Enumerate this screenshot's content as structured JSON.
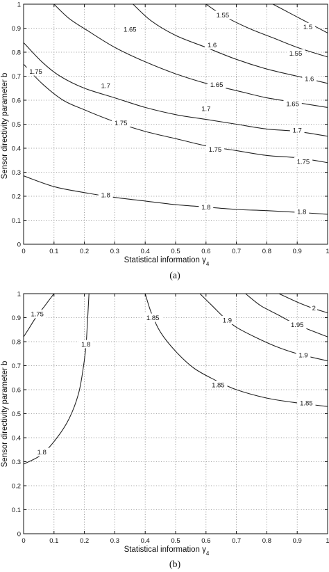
{
  "chart_data": [
    {
      "type": "line",
      "subtype": "contour",
      "caption": "(a)",
      "xlabel": "Statistical information γ4",
      "ylabel": "Sensor directivity parameter b",
      "xlim": [
        0,
        1
      ],
      "ylim": [
        0,
        1
      ],
      "x_ticks": [
        "0",
        "0.1",
        "0.2",
        "0.3",
        "0.4",
        "0.5",
        "0.6",
        "0.7",
        "0.8",
        "0.9",
        "1"
      ],
      "y_ticks": [
        "0",
        "0.1",
        "0.2",
        "0.3",
        "0.4",
        "0.5",
        "0.6",
        "0.7",
        "0.8",
        "0.9",
        "1"
      ],
      "grid": true,
      "contours": [
        {
          "level": "1.5",
          "points": [
            [
              0.82,
              1.0
            ],
            [
              0.88,
              0.96
            ],
            [
              0.94,
              0.92
            ],
            [
              1.0,
              0.88
            ]
          ],
          "labels": [
            {
              "text": "1.5",
              "x": 0.935,
              "y": 0.905,
              "angle": 0
            }
          ]
        },
        {
          "level": "1.55",
          "points": [
            [
              0.6,
              1.0
            ],
            [
              0.66,
              0.95
            ],
            [
              0.74,
              0.9
            ],
            [
              0.82,
              0.86
            ],
            [
              0.9,
              0.82
            ],
            [
              1.0,
              0.78
            ]
          ],
          "labels": [
            {
              "text": "1.55",
              "x": 0.655,
              "y": 0.955,
              "angle": 0
            },
            {
              "text": "1.55",
              "x": 0.895,
              "y": 0.795,
              "angle": 0
            }
          ]
        },
        {
          "level": "1.6",
          "points": [
            [
              0.36,
              1.0
            ],
            [
              0.42,
              0.93
            ],
            [
              0.5,
              0.87
            ],
            [
              0.6,
              0.82
            ],
            [
              0.7,
              0.77
            ],
            [
              0.8,
              0.73
            ],
            [
              0.9,
              0.7
            ],
            [
              1.0,
              0.67
            ]
          ],
          "labels": [
            {
              "text": "1.6",
              "x": 0.62,
              "y": 0.83,
              "angle": 0
            },
            {
              "text": "1.6",
              "x": 0.94,
              "y": 0.69,
              "angle": 0
            }
          ]
        },
        {
          "level": "1.65",
          "points": [
            [
              0.1,
              1.0
            ],
            [
              0.15,
              0.94
            ],
            [
              0.21,
              0.89
            ],
            [
              0.3,
              0.82
            ],
            [
              0.4,
              0.76
            ],
            [
              0.5,
              0.71
            ],
            [
              0.6,
              0.67
            ],
            [
              0.7,
              0.64
            ],
            [
              0.8,
              0.61
            ],
            [
              0.9,
              0.59
            ],
            [
              1.0,
              0.57
            ]
          ],
          "labels": [
            {
              "text": "1.65",
              "x": 0.35,
              "y": 0.895,
              "angle": 0
            },
            {
              "text": "1.65",
              "x": 0.635,
              "y": 0.665,
              "angle": 0
            },
            {
              "text": "1.65",
              "x": 0.885,
              "y": 0.585,
              "angle": 0
            }
          ]
        },
        {
          "level": "1.7",
          "points": [
            [
              0.0,
              0.84
            ],
            [
              0.06,
              0.76
            ],
            [
              0.12,
              0.7
            ],
            [
              0.2,
              0.65
            ],
            [
              0.3,
              0.61
            ],
            [
              0.4,
              0.57
            ],
            [
              0.5,
              0.54
            ],
            [
              0.6,
              0.52
            ],
            [
              0.7,
              0.5
            ],
            [
              0.8,
              0.48
            ],
            [
              0.9,
              0.47
            ],
            [
              1.0,
              0.45
            ]
          ],
          "labels": [
            {
              "text": "1.7",
              "x": 0.27,
              "y": 0.66,
              "angle": 0
            },
            {
              "text": "1.7",
              "x": 0.6,
              "y": 0.565,
              "angle": 0
            },
            {
              "text": "1.7",
              "x": 0.9,
              "y": 0.475,
              "angle": 0
            }
          ]
        },
        {
          "level": "1.75",
          "points": [
            [
              0.0,
              0.75
            ],
            [
              0.06,
              0.67
            ],
            [
              0.13,
              0.6
            ],
            [
              0.2,
              0.56
            ],
            [
              0.3,
              0.51
            ],
            [
              0.4,
              0.47
            ],
            [
              0.5,
              0.44
            ],
            [
              0.6,
              0.41
            ],
            [
              0.7,
              0.39
            ],
            [
              0.8,
              0.37
            ],
            [
              0.9,
              0.36
            ],
            [
              1.0,
              0.34
            ]
          ],
          "labels": [
            {
              "text": "1.75",
              "x": 0.04,
              "y": 0.72,
              "angle": 0
            },
            {
              "text": "1.75",
              "x": 0.32,
              "y": 0.505,
              "angle": 0
            },
            {
              "text": "1.75",
              "x": 0.63,
              "y": 0.395,
              "angle": 0
            },
            {
              "text": "1.75",
              "x": 0.92,
              "y": 0.345,
              "angle": 0
            }
          ]
        },
        {
          "level": "1.8",
          "points": [
            [
              0.0,
              0.285
            ],
            [
              0.1,
              0.24
            ],
            [
              0.2,
              0.215
            ],
            [
              0.3,
              0.195
            ],
            [
              0.4,
              0.18
            ],
            [
              0.5,
              0.165
            ],
            [
              0.6,
              0.155
            ],
            [
              0.7,
              0.145
            ],
            [
              0.8,
              0.14
            ],
            [
              0.9,
              0.133
            ],
            [
              1.0,
              0.125
            ]
          ],
          "labels": [
            {
              "text": "1.8",
              "x": 0.27,
              "y": 0.205,
              "angle": 0
            },
            {
              "text": "1.8",
              "x": 0.6,
              "y": 0.155,
              "angle": 0
            },
            {
              "text": "1.8",
              "x": 0.915,
              "y": 0.135,
              "angle": 0
            }
          ]
        }
      ]
    },
    {
      "type": "line",
      "subtype": "contour",
      "caption": "(b)",
      "xlabel": "Statistical information γ4",
      "ylabel": "Sensor directivity parameter b",
      "xlim": [
        0,
        1
      ],
      "ylim": [
        0,
        1
      ],
      "x_ticks": [
        "0",
        "0.1",
        "0.2",
        "0.3",
        "0.4",
        "0.5",
        "0.6",
        "0.7",
        "0.8",
        "0.9",
        "1"
      ],
      "y_ticks": [
        "0",
        "0.1",
        "0.2",
        "0.3",
        "0.4",
        "0.5",
        "0.6",
        "0.7",
        "0.8",
        "0.9",
        "1"
      ],
      "grid": true,
      "contours": [
        {
          "level": "1.75",
          "points": [
            [
              0.0,
              0.82
            ],
            [
              0.02,
              0.86
            ],
            [
              0.04,
              0.9
            ],
            [
              0.07,
              0.95
            ],
            [
              0.1,
              1.0
            ]
          ],
          "labels": [
            {
              "text": "1.75",
              "x": 0.045,
              "y": 0.915,
              "angle": 0
            }
          ]
        },
        {
          "level": "1.8",
          "points": [
            [
              0.0,
              0.29
            ],
            [
              0.06,
              0.33
            ],
            [
              0.11,
              0.4
            ],
            [
              0.15,
              0.48
            ],
            [
              0.18,
              0.58
            ],
            [
              0.195,
              0.68
            ],
            [
              0.205,
              0.78
            ],
            [
              0.21,
              0.88
            ],
            [
              0.215,
              1.0
            ]
          ],
          "labels": [
            {
              "text": "1.8",
              "x": 0.06,
              "y": 0.34,
              "angle": 0
            },
            {
              "text": "1.8",
              "x": 0.205,
              "y": 0.79,
              "angle": 0
            }
          ]
        },
        {
          "level": "1.85",
          "points": [
            [
              0.4,
              1.0
            ],
            [
              0.42,
              0.92
            ],
            [
              0.45,
              0.84
            ],
            [
              0.5,
              0.76
            ],
            [
              0.56,
              0.69
            ],
            [
              0.63,
              0.64
            ],
            [
              0.7,
              0.6
            ],
            [
              0.8,
              0.565
            ],
            [
              0.9,
              0.545
            ],
            [
              1.0,
              0.53
            ]
          ],
          "labels": [
            {
              "text": "1.85",
              "x": 0.425,
              "y": 0.9,
              "angle": 0
            },
            {
              "text": "1.85",
              "x": 0.64,
              "y": 0.62,
              "angle": 0
            },
            {
              "text": "1.85",
              "x": 0.93,
              "y": 0.545,
              "angle": 0
            }
          ]
        },
        {
          "level": "1.9",
          "points": [
            [
              0.58,
              1.0
            ],
            [
              0.62,
              0.95
            ],
            [
              0.66,
              0.9
            ],
            [
              0.7,
              0.86
            ],
            [
              0.76,
              0.82
            ],
            [
              0.83,
              0.78
            ],
            [
              0.9,
              0.75
            ],
            [
              1.0,
              0.72
            ]
          ],
          "labels": [
            {
              "text": "1.9",
              "x": 0.67,
              "y": 0.89,
              "angle": 0
            },
            {
              "text": "1.9",
              "x": 0.92,
              "y": 0.745,
              "angle": 0
            }
          ]
        },
        {
          "level": "1.95",
          "points": [
            [
              0.73,
              1.0
            ],
            [
              0.78,
              0.95
            ],
            [
              0.84,
              0.91
            ],
            [
              0.9,
              0.87
            ],
            [
              1.0,
              0.82
            ]
          ],
          "labels": [
            {
              "text": "1.95",
              "x": 0.9,
              "y": 0.87,
              "angle": 0
            }
          ]
        },
        {
          "level": "2",
          "points": [
            [
              0.84,
              1.0
            ],
            [
              0.9,
              0.965
            ],
            [
              0.95,
              0.94
            ],
            [
              1.0,
              0.92
            ]
          ],
          "labels": [
            {
              "text": "2",
              "x": 0.955,
              "y": 0.94,
              "angle": 0
            }
          ]
        }
      ]
    }
  ]
}
